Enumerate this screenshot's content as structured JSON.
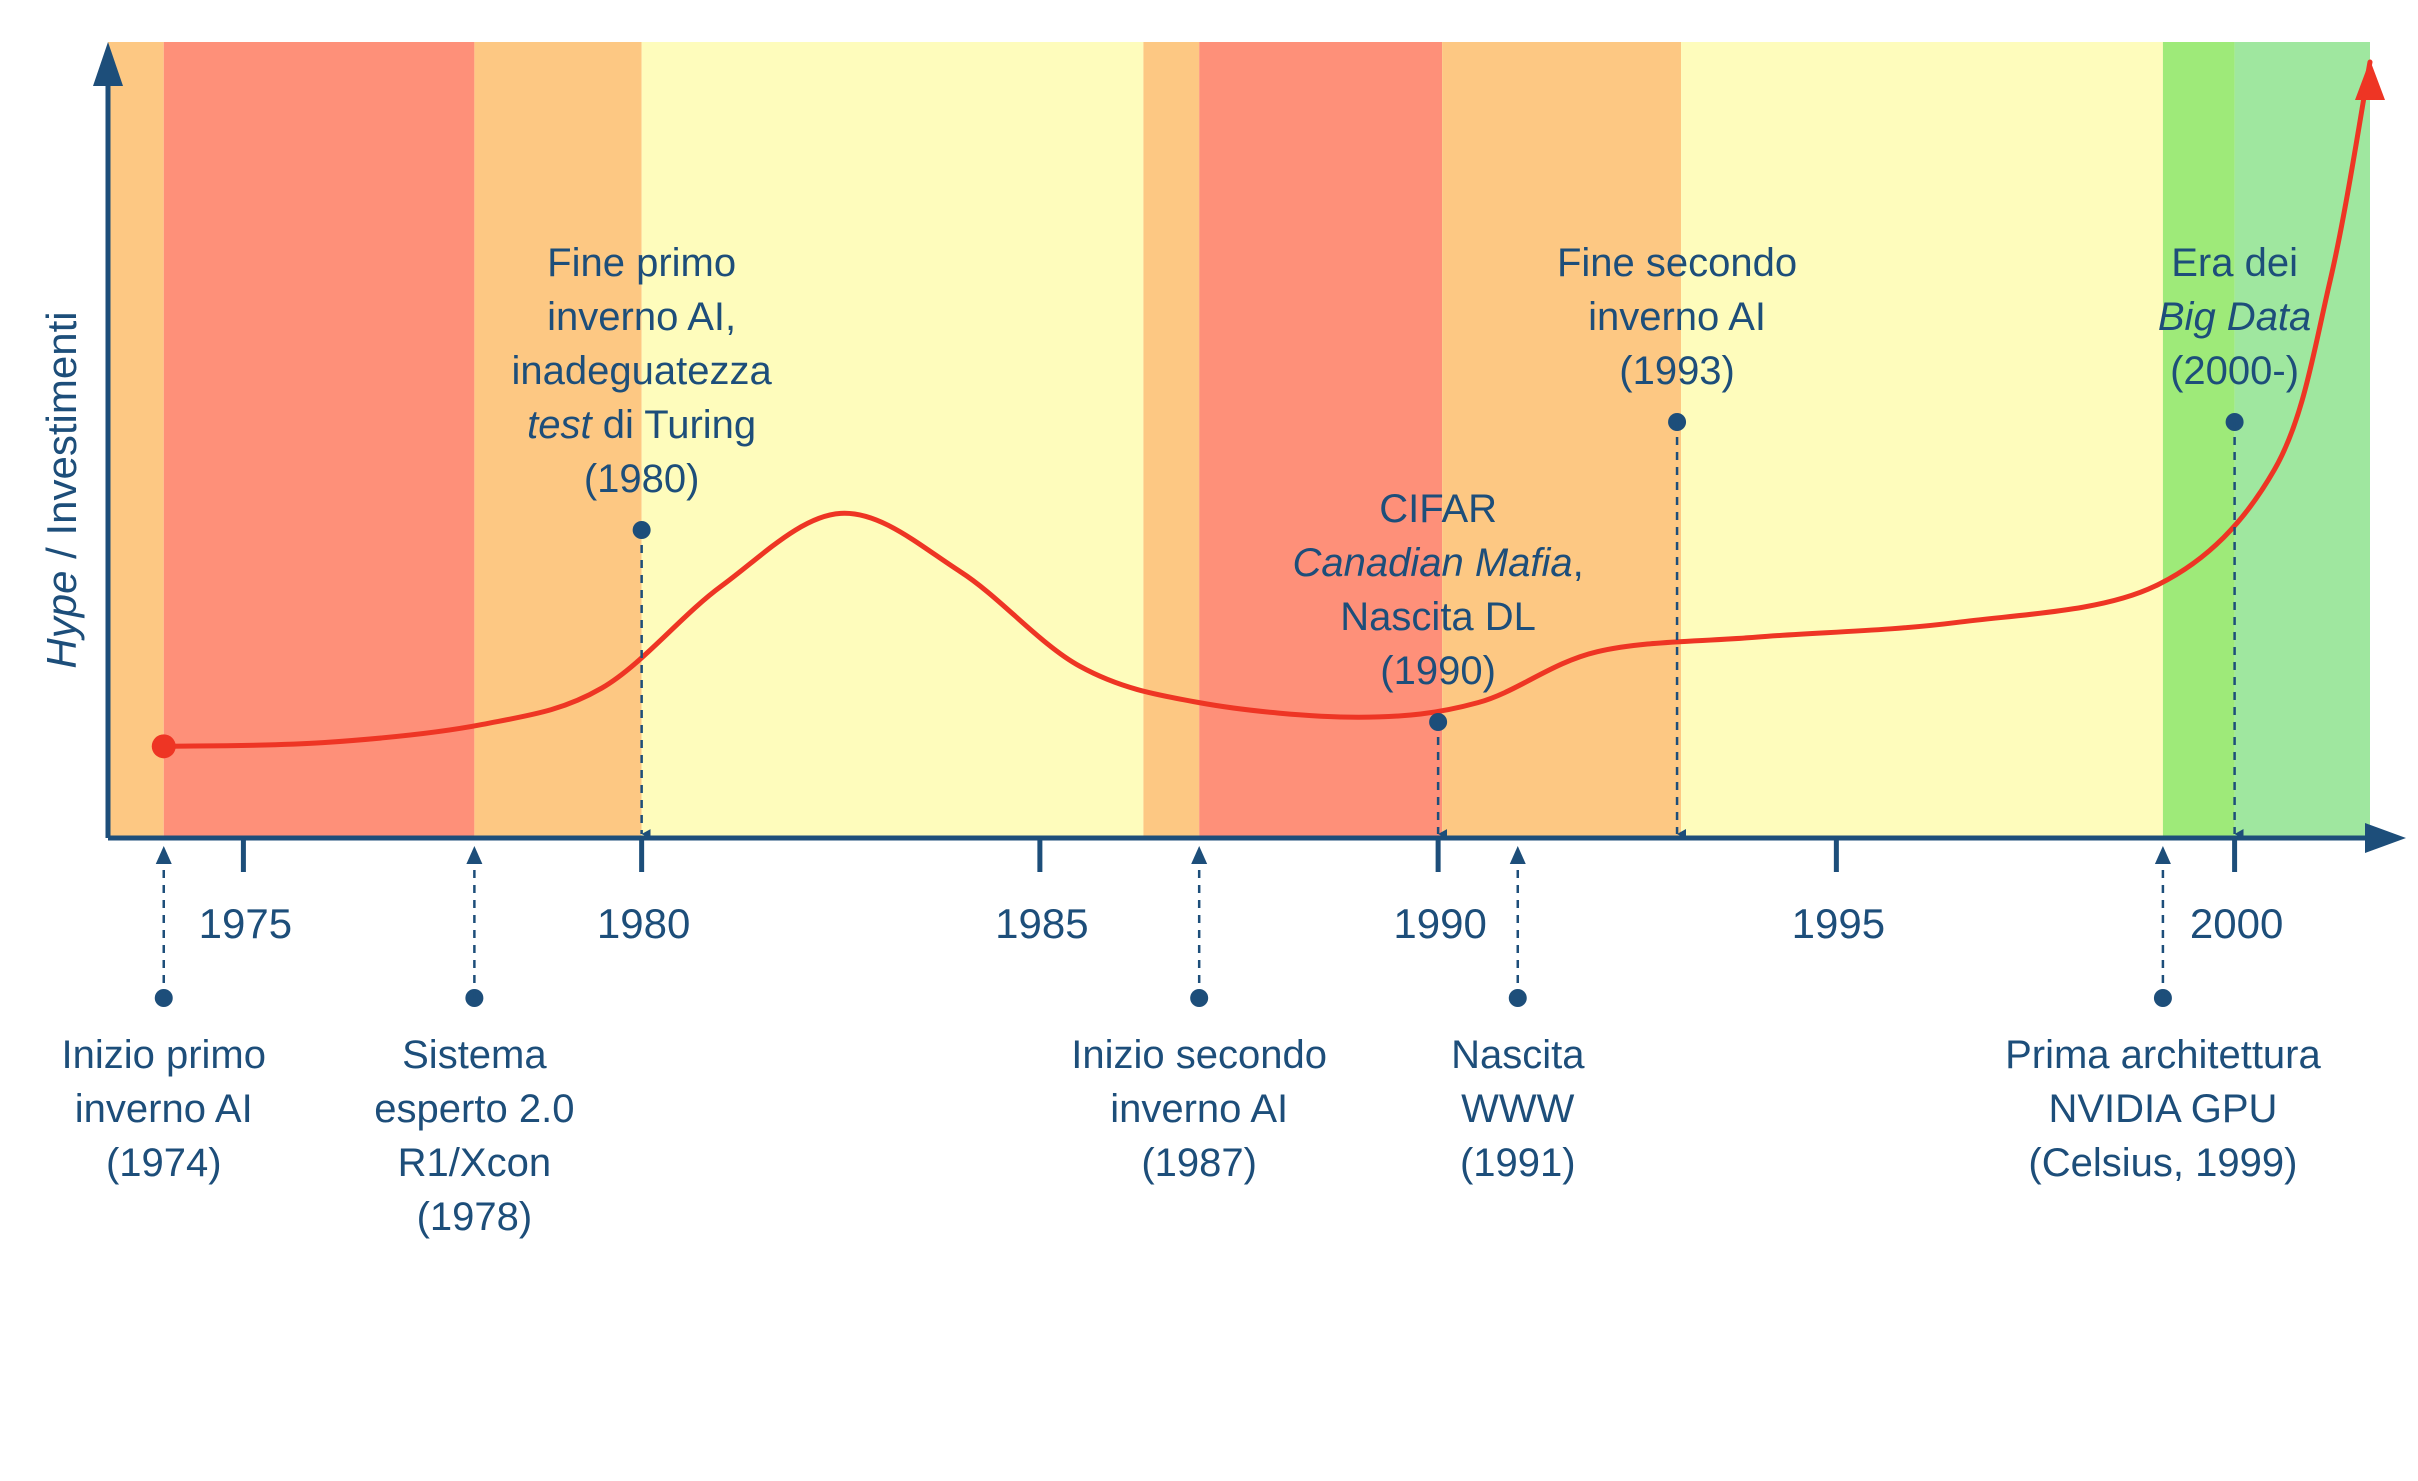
{
  "y_axis_label": {
    "italic": "Hype",
    "rest": " / Investimenti"
  },
  "colors": {
    "axis": "#1d4e7a",
    "curve": "#ee3524",
    "text": "#1d4e7a",
    "orange": "#fdc883",
    "red": "#fe9079",
    "yellow": "#fefcbc",
    "green_bright": "#9eea79",
    "green_light": "#9fe79f"
  },
  "bands": [
    {
      "from": 1973.3,
      "to": 1974.0,
      "color": "orange"
    },
    {
      "from": 1974.0,
      "to": 1977.9,
      "color": "red"
    },
    {
      "from": 1977.9,
      "to": 1980.0,
      "color": "orange"
    },
    {
      "from": 1980.0,
      "to": 1986.3,
      "color": "yellow"
    },
    {
      "from": 1986.3,
      "to": 1987.0,
      "color": "orange"
    },
    {
      "from": 1987.0,
      "to": 1990.05,
      "color": "red"
    },
    {
      "from": 1990.05,
      "to": 1993.05,
      "color": "orange"
    },
    {
      "from": 1993.05,
      "to": 1999.1,
      "color": "yellow"
    },
    {
      "from": 1999.1,
      "to": 2000.0,
      "color": "green_bright"
    },
    {
      "from": 2000.0,
      "to": 2001.7,
      "color": "green_light"
    }
  ],
  "chart_data": {
    "type": "line",
    "title": "",
    "xlabel": "",
    "ylabel": "Hype / Investimenti",
    "xlim": [
      1973.3,
      2001.7
    ],
    "ylim": [
      0,
      100
    ],
    "x_ticks": [
      1975,
      1980,
      1985,
      1990,
      1995,
      2000
    ],
    "x_tick_labels": [
      "1975",
      "1980",
      "1985",
      "1990",
      "1995",
      "2000"
    ],
    "x": [
      1974,
      1976,
      1978,
      1979.5,
      1981,
      1982.5,
      1984,
      1985.5,
      1987,
      1989,
      1990.5,
      1992,
      1994,
      1996.5,
      1999,
      2000.5,
      2001.2,
      2001.7
    ],
    "y": [
      6,
      6.5,
      9,
      14,
      28,
      38,
      30,
      17,
      12,
      10,
      12,
      19,
      21,
      23,
      28,
      44,
      70,
      100
    ],
    "start_marker": {
      "x": 1974,
      "y": 6
    }
  },
  "events_above": [
    {
      "year": 1980,
      "lines": [
        [
          {
            "t": "Fine primo"
          }
        ],
        [
          {
            "t": "inverno AI,"
          }
        ],
        [
          {
            "t": "inadeguatezza"
          }
        ],
        [
          {
            "t": "test",
            "i": true
          },
          {
            "t": " di Turing"
          }
        ],
        [
          {
            "t": "(1980)"
          }
        ]
      ]
    },
    {
      "year": 1990,
      "lines": [
        [
          {
            "t": "CIFAR"
          }
        ],
        [
          {
            "t": "Canadian Mafia",
            "i": true
          },
          {
            "t": ","
          }
        ],
        [
          {
            "t": "Nascita DL"
          }
        ],
        [
          {
            "t": "(1990)"
          }
        ]
      ]
    },
    {
      "year": 1993,
      "lines": [
        [
          {
            "t": "Fine secondo"
          }
        ],
        [
          {
            "t": "inverno AI"
          }
        ],
        [
          {
            "t": "(1993)"
          }
        ]
      ]
    },
    {
      "year": 2000,
      "lines": [
        [
          {
            "t": "Era dei"
          }
        ],
        [
          {
            "t": "Big Data",
            "i": true
          }
        ],
        [
          {
            "t": "(2000-)"
          }
        ]
      ]
    }
  ],
  "events_below": [
    {
      "year": 1974,
      "lines": [
        [
          {
            "t": "Inizio primo"
          }
        ],
        [
          {
            "t": "inverno AI"
          }
        ],
        [
          {
            "t": "(1974)"
          }
        ]
      ]
    },
    {
      "year": 1977.9,
      "lines": [
        [
          {
            "t": "Sistema"
          }
        ],
        [
          {
            "t": "esperto 2.0"
          }
        ],
        [
          {
            "t": "R1/Xcon"
          }
        ],
        [
          {
            "t": "(1978)"
          }
        ]
      ]
    },
    {
      "year": 1987,
      "lines": [
        [
          {
            "t": "Inizio secondo"
          }
        ],
        [
          {
            "t": "inverno AI"
          }
        ],
        [
          {
            "t": "(1987)"
          }
        ]
      ]
    },
    {
      "year": 1991,
      "lines": [
        [
          {
            "t": "Nascita"
          }
        ],
        [
          {
            "t": "WWW"
          }
        ],
        [
          {
            "t": "(1991)"
          }
        ]
      ]
    },
    {
      "year": 1999.1,
      "lines": [
        [
          {
            "t": "Prima architettura"
          }
        ],
        [
          {
            "t": "NVIDIA GPU"
          }
        ],
        [
          {
            "t": "(Celsius, 1999)"
          }
        ]
      ]
    }
  ]
}
